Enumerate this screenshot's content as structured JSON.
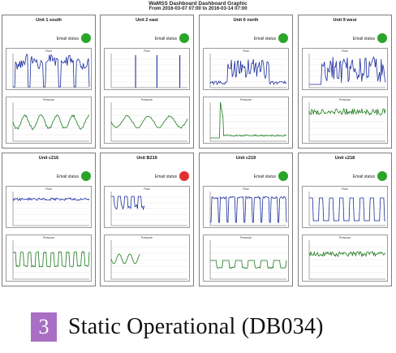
{
  "header": {
    "title": "WaMSS Dashboard Dashboard Graphic",
    "date_range": "From 2016-03-07 07:00 to 2016-03-14 07:00"
  },
  "email_label": "Email status",
  "colors": {
    "ok": "#2aa52a",
    "alert": "#e03030",
    "flow": "#1c2f9e",
    "level": "#1d7a1d"
  },
  "units": [
    {
      "name": "Unit 1 south",
      "status": "ok",
      "top_title": "Flow",
      "bottom_title": "Pressure"
    },
    {
      "name": "Unit 2 east",
      "status": "ok",
      "top_title": "Flow",
      "bottom_title": "Pressure"
    },
    {
      "name": "Unit 6 north",
      "status": "ok",
      "top_title": "Flow",
      "bottom_title": "Pressure"
    },
    {
      "name": "Unit 9 west",
      "status": "ok",
      "top_title": "Flow",
      "bottom_title": "Pressure"
    },
    {
      "name": "Unit c216",
      "status": "ok",
      "top_title": "Flow",
      "bottom_title": "Pressure"
    },
    {
      "name": "Unit B219",
      "status": "alert",
      "top_title": "Flow",
      "bottom_title": "Pressure"
    },
    {
      "name": "Unit c219",
      "status": "ok",
      "top_title": "Flow",
      "bottom_title": "Pressure"
    },
    {
      "name": "Unit c218",
      "status": "ok",
      "top_title": "Flow",
      "bottom_title": "Pressure"
    }
  ],
  "caption": {
    "number": "3",
    "text": "Static Operational (DB034)"
  }
}
